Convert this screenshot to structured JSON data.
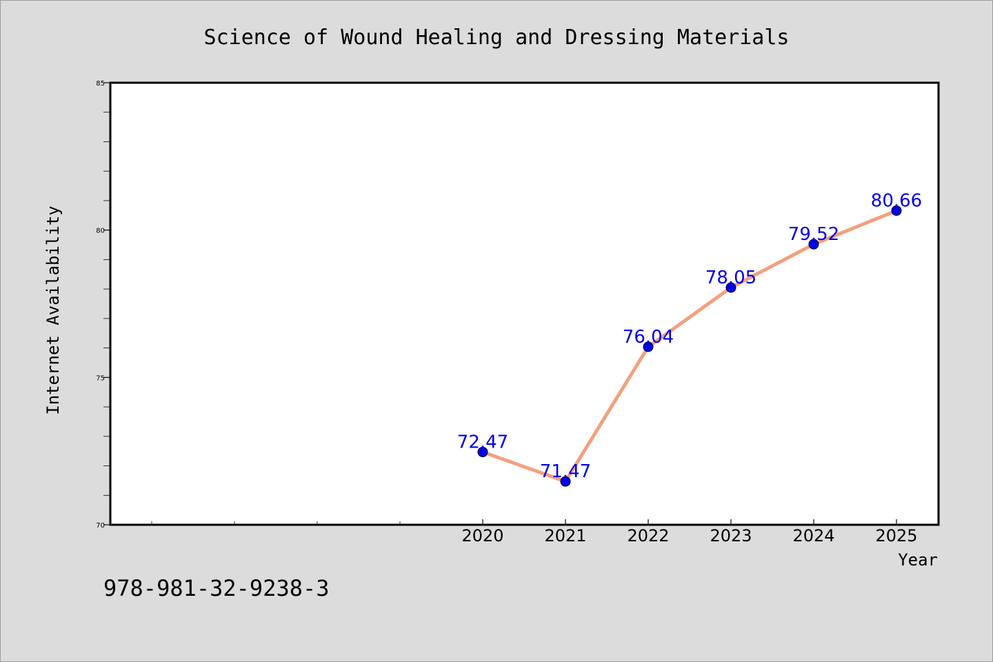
{
  "chart_data": {
    "type": "line",
    "title": "Science of Wound Healing and Dressing Materials",
    "xlabel": "Year",
    "ylabel": "Internet Availability",
    "x": [
      "2020",
      "2021",
      "2022",
      "2023",
      "2024",
      "2025"
    ],
    "values": [
      72.47,
      71.47,
      76.04,
      78.05,
      79.52,
      80.66
    ],
    "data_labels": [
      "72.47",
      "71.47",
      "76.04",
      "78.05",
      "79.52",
      "80.66"
    ],
    "yticks": [
      "70",
      "75",
      "80",
      "85"
    ],
    "ylim": [
      70,
      85
    ],
    "grid": false,
    "line_color": "#f4a07e",
    "marker_color": "#0000ee",
    "label_color": "#0000ee"
  },
  "footer": {
    "isbn": "978-981-32-9238-3"
  }
}
